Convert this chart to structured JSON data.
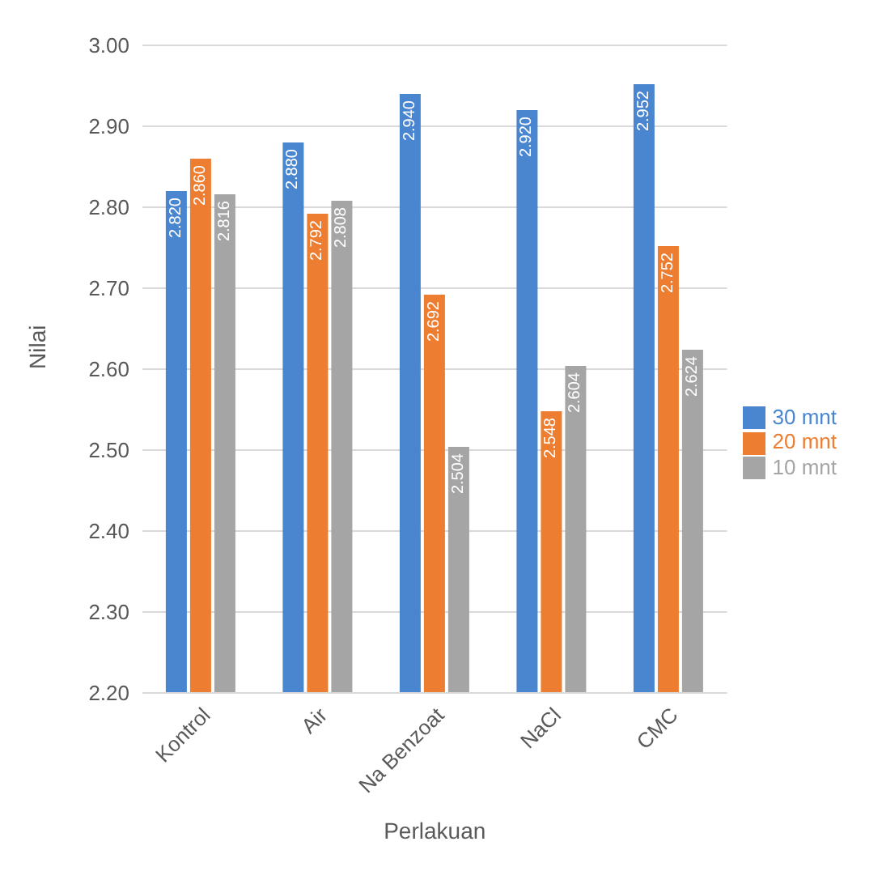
{
  "chart_data": {
    "type": "bar",
    "xlabel": "Perlakuan",
    "ylabel": "Nilai",
    "categories": [
      "Kontrol",
      "Air",
      "Na Benzoat",
      "NaCl",
      "CMC"
    ],
    "series": [
      {
        "name": "30 mnt",
        "color": "#4a86d0",
        "values": [
          2.82,
          2.88,
          2.94,
          2.92,
          2.952
        ],
        "value_labels": [
          "2.820",
          "2.880",
          "2.940",
          "2.920",
          "2.952"
        ]
      },
      {
        "name": "20 mnt",
        "color": "#ed7d31",
        "values": [
          2.86,
          2.792,
          2.692,
          2.548,
          2.752
        ],
        "value_labels": [
          "2.860",
          "2.792",
          "2.692",
          "2.548",
          "2.752"
        ]
      },
      {
        "name": "10 mnt",
        "color": "#a5a5a5",
        "values": [
          2.816,
          2.808,
          2.504,
          2.604,
          2.624
        ],
        "value_labels": [
          "2.816",
          "2.808",
          "2.504",
          "2.604",
          "2.624"
        ]
      }
    ],
    "ylim": [
      2.2,
      3.0
    ],
    "yticks": [
      {
        "value": 2.2,
        "label": "2.20"
      },
      {
        "value": 2.3,
        "label": "2.30"
      },
      {
        "value": 2.4,
        "label": "2.40"
      },
      {
        "value": 2.5,
        "label": "2.50"
      },
      {
        "value": 2.6,
        "label": "2.60"
      },
      {
        "value": 2.7,
        "label": "2.70"
      },
      {
        "value": 2.8,
        "label": "2.80"
      },
      {
        "value": 2.9,
        "label": "2.90"
      },
      {
        "value": 3.0,
        "label": "3.00"
      }
    ],
    "grid": "y",
    "legend": "right"
  }
}
